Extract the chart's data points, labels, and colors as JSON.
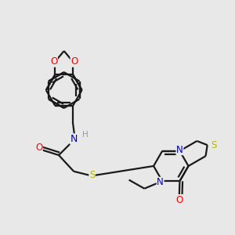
{
  "bg_color": "#e8e8e8",
  "atom_colors": {
    "C": "#000000",
    "N": "#0000cd",
    "O": "#ff0000",
    "S": "#b8b800",
    "H": "#999999"
  },
  "bond_color": "#1a1a1a",
  "font_size": 8.5,
  "line_width": 1.6,
  "xlim": [
    0,
    10
  ],
  "ylim": [
    0,
    10
  ]
}
